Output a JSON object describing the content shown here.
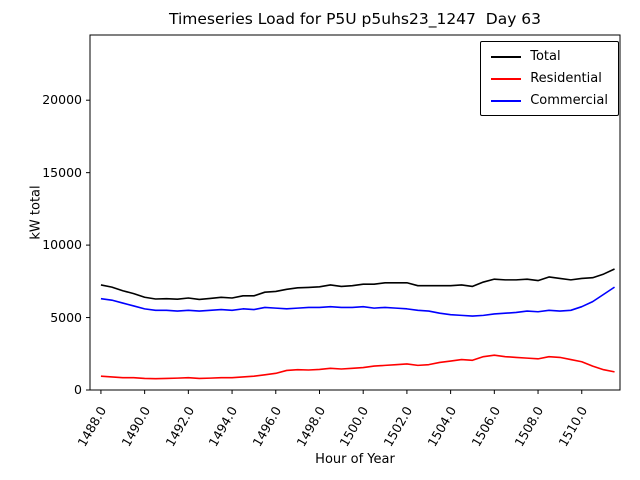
{
  "chart_data": {
    "type": "line",
    "title": "Timeseries Load for P5U p5uhs23_1247  Day 63",
    "xlabel": "Hour of Year",
    "ylabel": "kW total",
    "xlim": [
      1487.5,
      1511.75
    ],
    "ylim": [
      0,
      24500
    ],
    "grid": false,
    "legend_position": "upper right",
    "x_ticks": [
      1488,
      1490,
      1492,
      1494,
      1496,
      1498,
      1500,
      1502,
      1504,
      1506,
      1508,
      1510
    ],
    "x_tick_labels": [
      "1488.0",
      "1490.0",
      "1492.0",
      "1494.0",
      "1496.0",
      "1498.0",
      "1500.0",
      "1502.0",
      "1504.0",
      "1506.0",
      "1508.0",
      "1510.0"
    ],
    "y_ticks": [
      0,
      5000,
      10000,
      15000,
      20000
    ],
    "y_tick_labels": [
      "0",
      "5000",
      "10000",
      "15000",
      "20000"
    ],
    "x": [
      1488.0,
      1488.5,
      1489.0,
      1489.5,
      1490.0,
      1490.5,
      1491.0,
      1491.5,
      1492.0,
      1492.5,
      1493.0,
      1493.5,
      1494.0,
      1494.5,
      1495.0,
      1495.5,
      1496.0,
      1496.5,
      1497.0,
      1497.5,
      1498.0,
      1498.5,
      1499.0,
      1499.5,
      1500.0,
      1500.5,
      1501.0,
      1501.5,
      1502.0,
      1502.5,
      1503.0,
      1503.5,
      1504.0,
      1504.5,
      1505.0,
      1505.5,
      1506.0,
      1506.5,
      1507.0,
      1507.5,
      1508.0,
      1508.5,
      1509.0,
      1509.5,
      1510.0,
      1510.5,
      1511.0,
      1511.5
    ],
    "series": [
      {
        "name": "Total",
        "color": "#000000",
        "values": [
          7250,
          7100,
          6850,
          6650,
          6400,
          6280,
          6300,
          6270,
          6350,
          6250,
          6320,
          6400,
          6350,
          6500,
          6500,
          6750,
          6800,
          6950,
          7050,
          7080,
          7120,
          7250,
          7150,
          7200,
          7300,
          7300,
          7400,
          7400,
          7400,
          7200,
          7200,
          7200,
          7200,
          7250,
          7150,
          7450,
          7650,
          7600,
          7600,
          7650,
          7550,
          7800,
          7700,
          7600,
          7700,
          7750,
          8000,
          8350
        ]
      },
      {
        "name": "Residential",
        "color": "#ff0000",
        "values": [
          950,
          900,
          850,
          850,
          800,
          780,
          800,
          820,
          850,
          800,
          820,
          850,
          850,
          900,
          950,
          1050,
          1150,
          1350,
          1400,
          1380,
          1420,
          1500,
          1450,
          1500,
          1550,
          1650,
          1700,
          1750,
          1800,
          1700,
          1750,
          1900,
          2000,
          2100,
          2050,
          2300,
          2400,
          2300,
          2250,
          2200,
          2150,
          2300,
          2250,
          2100,
          1950,
          1650,
          1400,
          1250
        ]
      },
      {
        "name": "Commercial",
        "color": "#0000ff",
        "values": [
          6300,
          6200,
          6000,
          5800,
          5600,
          5500,
          5500,
          5450,
          5500,
          5450,
          5500,
          5550,
          5500,
          5600,
          5550,
          5700,
          5650,
          5600,
          5650,
          5700,
          5700,
          5750,
          5700,
          5700,
          5750,
          5650,
          5700,
          5650,
          5600,
          5500,
          5450,
          5300,
          5200,
          5150,
          5100,
          5150,
          5250,
          5300,
          5350,
          5450,
          5400,
          5500,
          5450,
          5500,
          5750,
          6100,
          6600,
          7100
        ]
      }
    ]
  }
}
